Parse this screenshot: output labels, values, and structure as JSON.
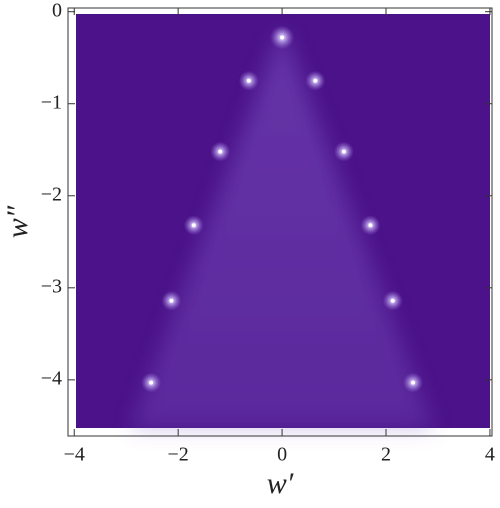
{
  "chart_data": {
    "type": "density",
    "xlabel": "w′",
    "ylabel": "w″",
    "xlim": [
      -4.12,
      4.04
    ],
    "ylim": [
      -4.61,
      0.04
    ],
    "xticks": [
      {
        "value": -4,
        "label": "−4"
      },
      {
        "value": -2,
        "label": "−2"
      },
      0,
      2,
      4
    ],
    "yticks": [
      0,
      {
        "value": -1,
        "label": "−1"
      },
      {
        "value": -2,
        "label": "−2"
      },
      {
        "value": -3,
        "label": "−3"
      },
      {
        "value": -4,
        "label": "−4"
      }
    ],
    "background_color": "#4b1289",
    "glow_color": "#7a52c0",
    "spot_color": "#ffffff",
    "x": [
      0,
      -0.64,
      0.64,
      -1.19,
      1.19,
      -1.7,
      1.7,
      -2.13,
      2.13,
      -2.52,
      2.52
    ],
    "y": [
      -0.28,
      -0.75,
      -0.75,
      -1.52,
      -1.52,
      -2.32,
      -2.32,
      -3.14,
      -3.14,
      -4.03,
      -4.03
    ]
  }
}
